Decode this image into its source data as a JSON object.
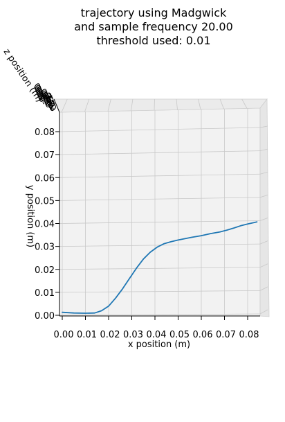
{
  "chart_data": {
    "type": "line",
    "projection": "3d",
    "title_lines": [
      "trajectory using Madgwick",
      "and sample frequency 20.00",
      "threshold used: 0.01"
    ],
    "xlabel": "x position (m)",
    "ylabel": "y position (m)",
    "zlabel": "z position (m)",
    "x_ticks": [
      "0.00",
      "0.01",
      "0.02",
      "0.03",
      "0.04",
      "0.05",
      "0.06",
      "0.07",
      "0.08"
    ],
    "y_ticks": [
      "0.00",
      "0.01",
      "0.02",
      "0.03",
      "0.04",
      "0.05",
      "0.06",
      "0.07",
      "0.08"
    ],
    "z_ticks": [
      "0.00",
      "0.01",
      "0.02",
      "0.03",
      "0.04",
      "0.05",
      "0.06",
      "0.07",
      "0.08"
    ],
    "xlim": [
      -0.0025,
      0.0855
    ],
    "ylim": [
      -0.0025,
      0.0855
    ],
    "grid": true,
    "pane_color": "#f2f2f2",
    "series": [
      {
        "color": "#1f77b4",
        "x": [
          0.0,
          0.005,
          0.01,
          0.014,
          0.017,
          0.02,
          0.023,
          0.026,
          0.029,
          0.032,
          0.035,
          0.038,
          0.041,
          0.044,
          0.047,
          0.05,
          0.053,
          0.056,
          0.06,
          0.064,
          0.068,
          0.071,
          0.074,
          0.077,
          0.08,
          0.084
        ],
        "y": [
          0.0013,
          0.001,
          0.0009,
          0.001,
          0.002,
          0.004,
          0.0075,
          0.0115,
          0.016,
          0.0205,
          0.0245,
          0.0275,
          0.0297,
          0.0312,
          0.0321,
          0.0328,
          0.0334,
          0.034,
          0.0347,
          0.0356,
          0.0363,
          0.0371,
          0.038,
          0.039,
          0.0398,
          0.0407
        ]
      }
    ]
  }
}
